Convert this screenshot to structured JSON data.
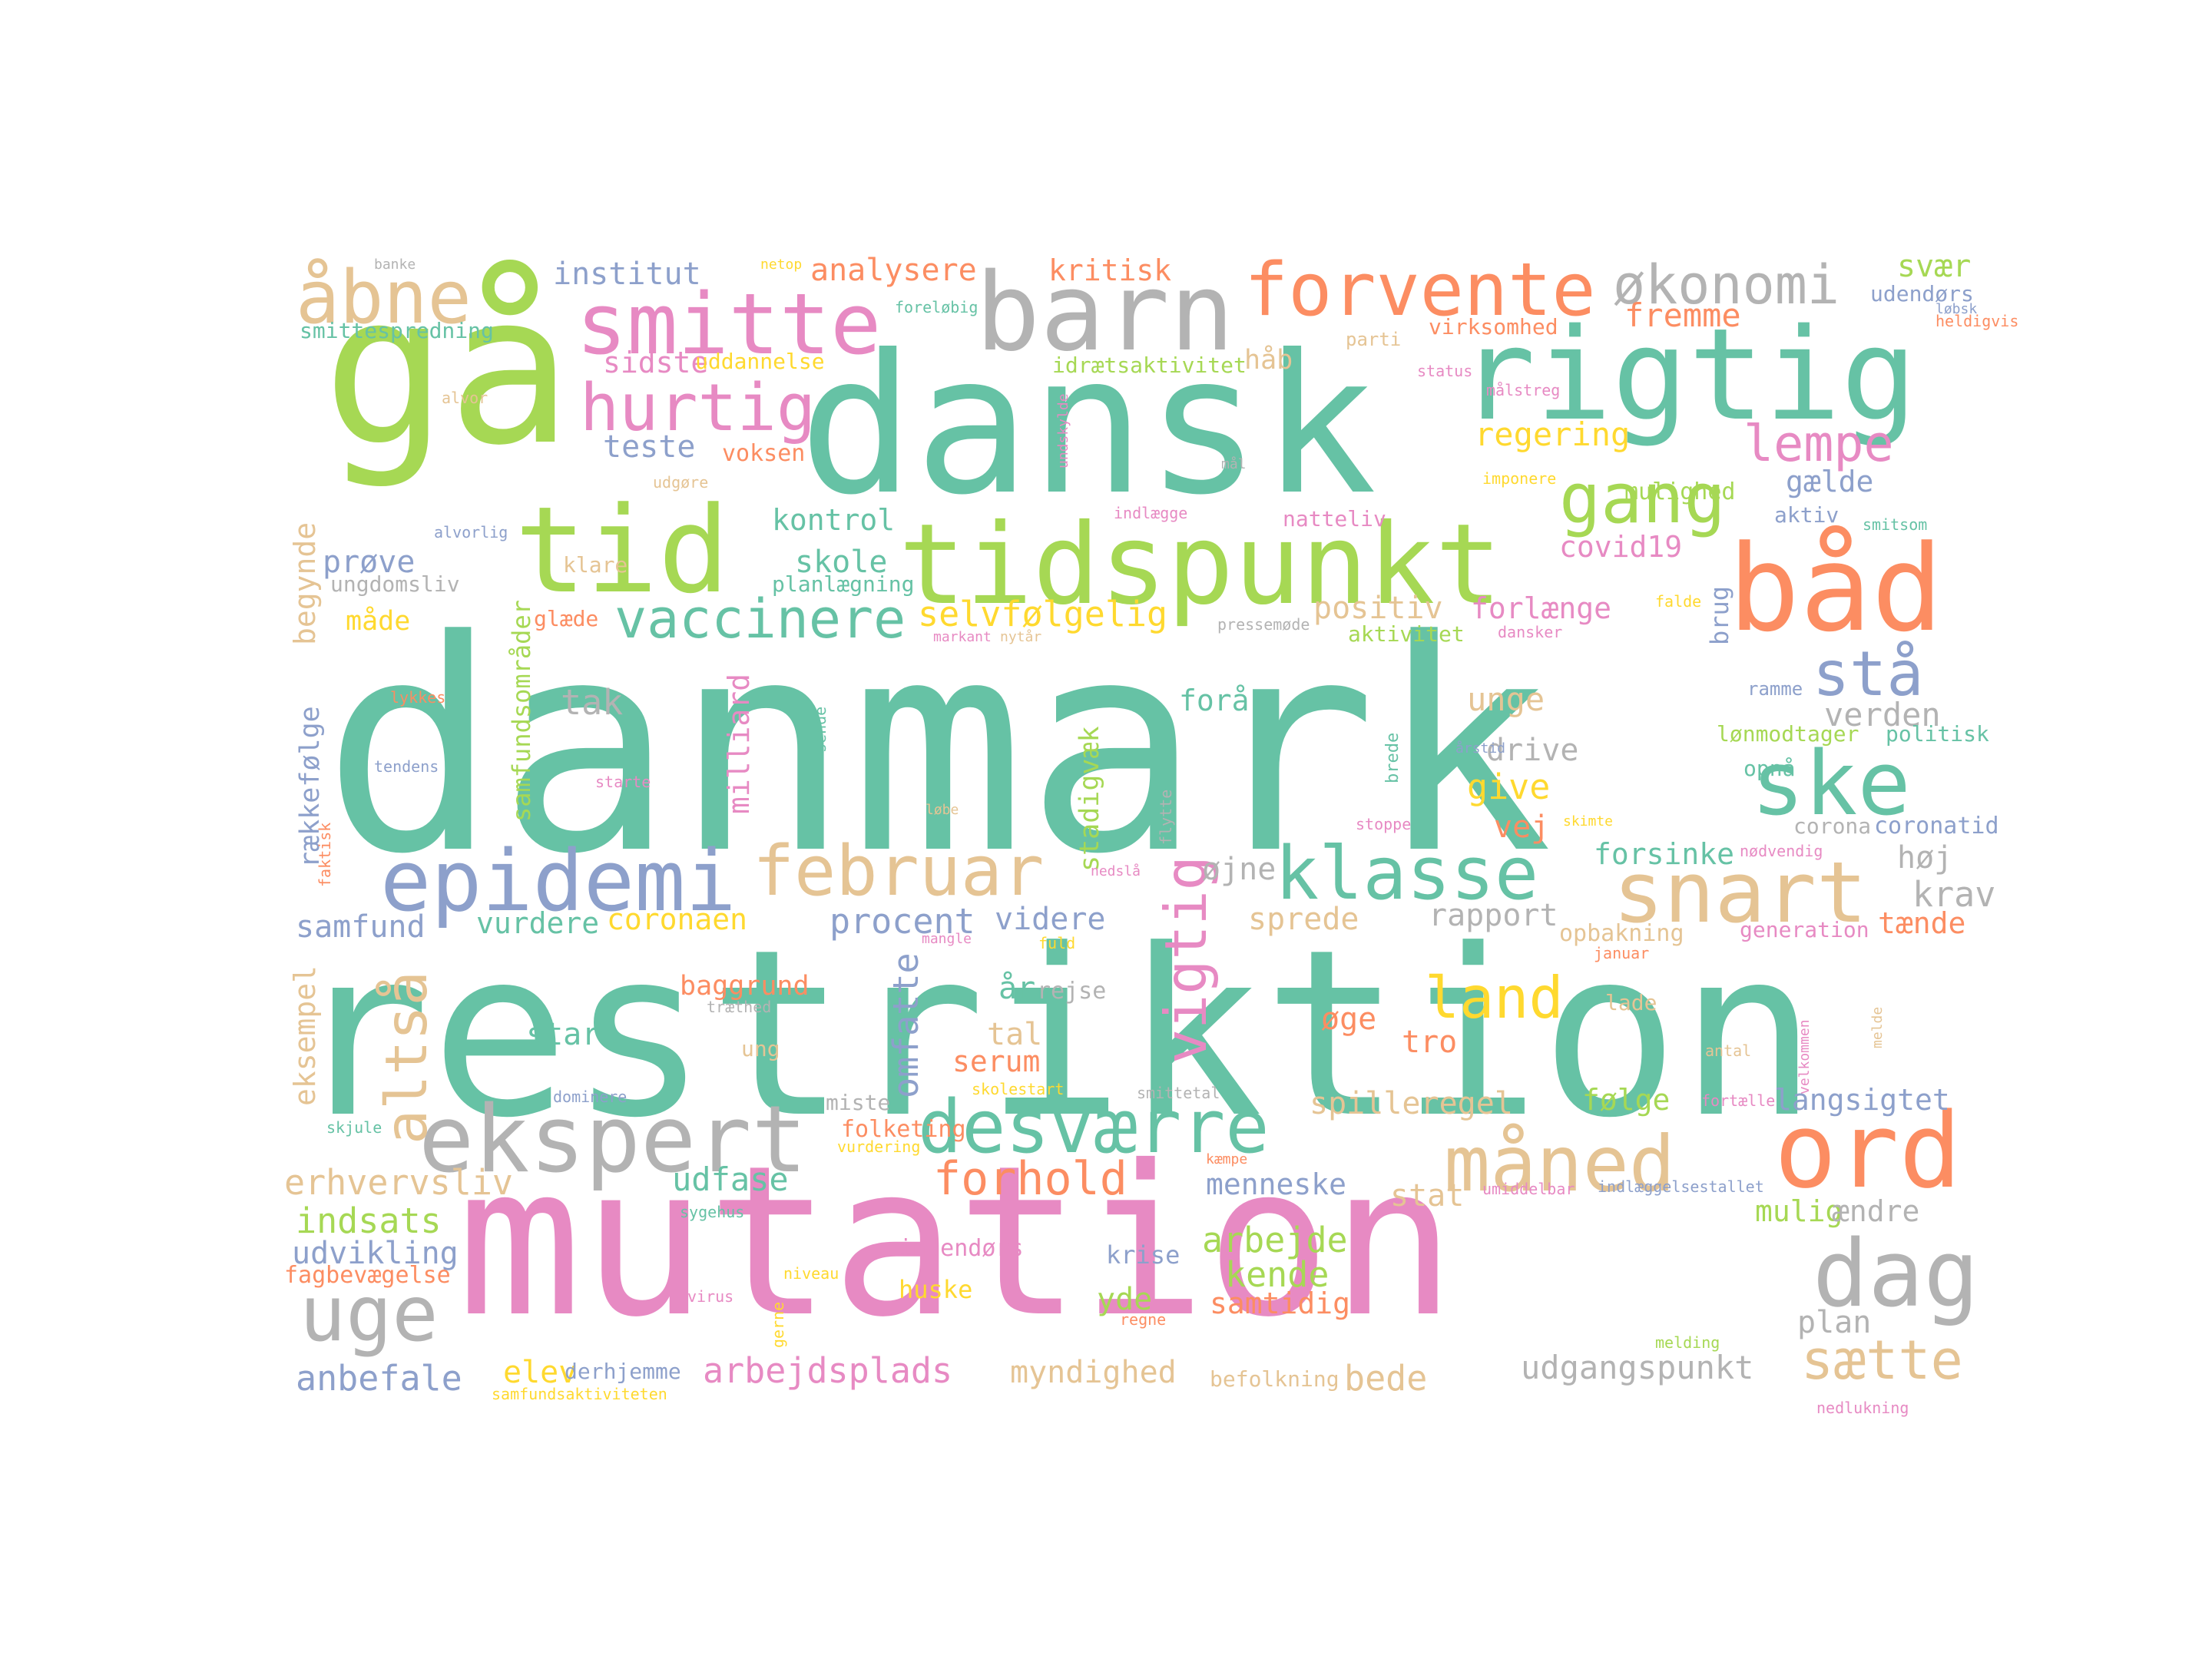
{
  "palette": {
    "teal": "#66c2a5",
    "orange": "#fc8d62",
    "blue": "#8da0cb",
    "pink": "#e78ac3",
    "green": "#a6d854",
    "yellow": "#ffd92f",
    "tan": "#e5c494",
    "gray": "#b3b3b3"
  },
  "words": [
    {
      "text": "danmark",
      "color": "teal"
    },
    {
      "text": "restriktion",
      "color": "teal"
    },
    {
      "text": "mutation",
      "color": "pink"
    },
    {
      "text": "dansk",
      "color": "teal"
    },
    {
      "text": "gå",
      "color": "green"
    },
    {
      "text": "rigtig",
      "color": "teal"
    },
    {
      "text": "tidspunkt",
      "color": "green"
    },
    {
      "text": "båd",
      "color": "orange"
    },
    {
      "text": "barn",
      "color": "gray"
    },
    {
      "text": "tid",
      "color": "green"
    },
    {
      "text": "ekspert",
      "color": "gray"
    },
    {
      "text": "ord",
      "color": "orange"
    },
    {
      "text": "smitte",
      "color": "pink"
    },
    {
      "text": "forvente",
      "color": "orange"
    },
    {
      "text": "ske",
      "color": "teal"
    },
    {
      "text": "epidemi",
      "color": "blue"
    },
    {
      "text": "februar",
      "color": "tan"
    },
    {
      "text": "klasse",
      "color": "teal"
    },
    {
      "text": "snart",
      "color": "tan"
    },
    {
      "text": "måned",
      "color": "tan"
    },
    {
      "text": "dag",
      "color": "gray"
    },
    {
      "text": "uge",
      "color": "gray"
    },
    {
      "text": "desværre",
      "color": "teal"
    },
    {
      "text": "åbne",
      "color": "tan"
    },
    {
      "text": "hurtig",
      "color": "pink"
    },
    {
      "text": "gang",
      "color": "green"
    },
    {
      "text": "økonomi",
      "color": "gray"
    },
    {
      "text": "vaccinere",
      "color": "teal"
    },
    {
      "text": "stå",
      "color": "blue"
    },
    {
      "text": "vigtig",
      "color": "pink"
    },
    {
      "text": "altså",
      "color": "tan"
    },
    {
      "text": "forhold",
      "color": "orange"
    },
    {
      "text": "land",
      "color": "yellow"
    },
    {
      "text": "lempe",
      "color": "pink"
    },
    {
      "text": "selvfølgelig",
      "color": "yellow"
    },
    {
      "text": "procent",
      "color": "blue"
    },
    {
      "text": "omfatte",
      "color": "blue"
    },
    {
      "text": "institut",
      "color": "blue"
    },
    {
      "text": "analysere",
      "color": "orange"
    },
    {
      "text": "kritisk",
      "color": "orange"
    },
    {
      "text": "svær",
      "color": "green"
    },
    {
      "text": "udendørs",
      "color": "blue"
    },
    {
      "text": "løbsk",
      "color": "blue"
    },
    {
      "text": "heldigvis",
      "color": "orange"
    },
    {
      "text": "banke",
      "color": "gray"
    },
    {
      "text": "netop",
      "color": "yellow"
    },
    {
      "text": "foreløbig",
      "color": "teal"
    },
    {
      "text": "fremme",
      "color": "orange"
    },
    {
      "text": "smittespredning",
      "color": "teal"
    },
    {
      "text": "parti",
      "color": "tan"
    },
    {
      "text": "virksomhed",
      "color": "orange"
    },
    {
      "text": "sidste",
      "color": "pink"
    },
    {
      "text": "uddannelse",
      "color": "yellow"
    },
    {
      "text": "idrætsaktivitet",
      "color": "green"
    },
    {
      "text": "håb",
      "color": "tan"
    },
    {
      "text": "status",
      "color": "pink"
    },
    {
      "text": "alvor",
      "color": "tan"
    },
    {
      "text": "målstreg",
      "color": "pink"
    },
    {
      "text": "undskylde",
      "color": "pink"
    },
    {
      "text": "regering",
      "color": "yellow"
    },
    {
      "text": "teste",
      "color": "blue"
    },
    {
      "text": "voksen",
      "color": "orange"
    },
    {
      "text": "udgøre",
      "color": "tan"
    },
    {
      "text": "mål",
      "color": "gray"
    },
    {
      "text": "imponere",
      "color": "yellow"
    },
    {
      "text": "gælde",
      "color": "blue"
    },
    {
      "text": "mulighed",
      "color": "green"
    },
    {
      "text": "kontrol",
      "color": "teal"
    },
    {
      "text": "indlægge",
      "color": "pink"
    },
    {
      "text": "natteliv",
      "color": "pink"
    },
    {
      "text": "aktiv",
      "color": "blue"
    },
    {
      "text": "smitsom",
      "color": "teal"
    },
    {
      "text": "alvorlig",
      "color": "blue"
    },
    {
      "text": "covid19",
      "color": "pink"
    },
    {
      "text": "prøve",
      "color": "blue"
    },
    {
      "text": "skole",
      "color": "teal"
    },
    {
      "text": "klare",
      "color": "tan"
    },
    {
      "text": "planlægning",
      "color": "teal"
    },
    {
      "text": "ungdomsliv",
      "color": "gray"
    },
    {
      "text": "samfundsområder",
      "color": "green"
    },
    {
      "text": "begynde",
      "color": "tan"
    },
    {
      "text": "måde",
      "color": "yellow"
    },
    {
      "text": "glæde",
      "color": "orange"
    },
    {
      "text": "markant",
      "color": "pink"
    },
    {
      "text": "nytår",
      "color": "tan"
    },
    {
      "text": "pressemøde",
      "color": "gray"
    },
    {
      "text": "positiv",
      "color": "tan"
    },
    {
      "text": "aktivitet",
      "color": "green"
    },
    {
      "text": "forlænge",
      "color": "pink"
    },
    {
      "text": "dansker",
      "color": "pink"
    },
    {
      "text": "falde",
      "color": "yellow"
    },
    {
      "text": "brug",
      "color": "blue"
    },
    {
      "text": "tak",
      "color": "gray"
    },
    {
      "text": "milliard",
      "color": "pink"
    },
    {
      "text": "sende",
      "color": "teal"
    },
    {
      "text": "stadigvæk",
      "color": "green"
    },
    {
      "text": "forår",
      "color": "teal"
    },
    {
      "text": "brede",
      "color": "teal"
    },
    {
      "text": "unge",
      "color": "tan"
    },
    {
      "text": "ramme",
      "color": "blue"
    },
    {
      "text": "verden",
      "color": "gray"
    },
    {
      "text": "rækkefølge",
      "color": "blue"
    },
    {
      "text": "lykkes",
      "color": "orange"
    },
    {
      "text": "tendens",
      "color": "blue"
    },
    {
      "text": "starte",
      "color": "pink"
    },
    {
      "text": "løbe",
      "color": "tan"
    },
    {
      "text": "flytte",
      "color": "gray"
    },
    {
      "text": "drive",
      "color": "gray"
    },
    {
      "text": "årstid",
      "color": "blue"
    },
    {
      "text": "lønmodtager",
      "color": "green"
    },
    {
      "text": "politisk",
      "color": "teal"
    },
    {
      "text": "give",
      "color": "yellow"
    },
    {
      "text": "opnå",
      "color": "teal"
    },
    {
      "text": "stoppe",
      "color": "pink"
    },
    {
      "text": "skimte",
      "color": "yellow"
    },
    {
      "text": "corona",
      "color": "gray"
    },
    {
      "text": "coronatid",
      "color": "blue"
    },
    {
      "text": "vej",
      "color": "orange"
    },
    {
      "text": "faktisk",
      "color": "orange"
    },
    {
      "text": "forsinke",
      "color": "teal"
    },
    {
      "text": "nødvendig",
      "color": "pink"
    },
    {
      "text": "øjne",
      "color": "gray"
    },
    {
      "text": "høj",
      "color": "gray"
    },
    {
      "text": "nedslå",
      "color": "pink"
    },
    {
      "text": "krav",
      "color": "gray"
    },
    {
      "text": "samfund",
      "color": "blue"
    },
    {
      "text": "vurdere",
      "color": "teal"
    },
    {
      "text": "coronaen",
      "color": "yellow"
    },
    {
      "text": "videre",
      "color": "blue"
    },
    {
      "text": "sprede",
      "color": "tan"
    },
    {
      "text": "rapport",
      "color": "gray"
    },
    {
      "text": "mangle",
      "color": "pink"
    },
    {
      "text": "fuld",
      "color": "yellow"
    },
    {
      "text": "opbakning",
      "color": "tan"
    },
    {
      "text": "januar",
      "color": "orange"
    },
    {
      "text": "generation",
      "color": "pink"
    },
    {
      "text": "tænde",
      "color": "orange"
    },
    {
      "text": "eksempel",
      "color": "tan"
    },
    {
      "text": "baggrund",
      "color": "orange"
    },
    {
      "text": "træthed",
      "color": "gray"
    },
    {
      "text": "år",
      "color": "teal"
    },
    {
      "text": "rejse",
      "color": "gray"
    },
    {
      "text": "lade",
      "color": "tan"
    },
    {
      "text": "start",
      "color": "teal"
    },
    {
      "text": "tal",
      "color": "tan"
    },
    {
      "text": "øge",
      "color": "orange"
    },
    {
      "text": "tro",
      "color": "orange"
    },
    {
      "text": "velkommen",
      "color": "pink"
    },
    {
      "text": "melde",
      "color": "tan"
    },
    {
      "text": "ung",
      "color": "tan"
    },
    {
      "text": "serum",
      "color": "orange"
    },
    {
      "text": "antal",
      "color": "tan"
    },
    {
      "text": "dominere",
      "color": "blue"
    },
    {
      "text": "skolestart",
      "color": "yellow"
    },
    {
      "text": "smittetal",
      "color": "gray"
    },
    {
      "text": "spilleregel",
      "color": "tan"
    },
    {
      "text": "følge",
      "color": "green"
    },
    {
      "text": "fortælle",
      "color": "pink"
    },
    {
      "text": "langsigtet",
      "color": "blue"
    },
    {
      "text": "skjule",
      "color": "teal"
    },
    {
      "text": "miste",
      "color": "gray"
    },
    {
      "text": "folketing",
      "color": "orange"
    },
    {
      "text": "vurdering",
      "color": "yellow"
    },
    {
      "text": "erhvervsliv",
      "color": "tan"
    },
    {
      "text": "udfase",
      "color": "teal"
    },
    {
      "text": "kæmpe",
      "color": "orange"
    },
    {
      "text": "menneske",
      "color": "blue"
    },
    {
      "text": "umiddelbar",
      "color": "pink"
    },
    {
      "text": "indlæggelsestallet",
      "color": "blue"
    },
    {
      "text": "stat",
      "color": "tan"
    },
    {
      "text": "indsats",
      "color": "green"
    },
    {
      "text": "sygehus",
      "color": "teal"
    },
    {
      "text": "mulig",
      "color": "green"
    },
    {
      "text": "ændre",
      "color": "gray"
    },
    {
      "text": "udvikling",
      "color": "blue"
    },
    {
      "text": "fagbevægelse",
      "color": "orange"
    },
    {
      "text": "indendørs",
      "color": "pink"
    },
    {
      "text": "niveau",
      "color": "yellow"
    },
    {
      "text": "arbejde",
      "color": "green"
    },
    {
      "text": "krise",
      "color": "blue"
    },
    {
      "text": "kende",
      "color": "green"
    },
    {
      "text": "huske",
      "color": "yellow"
    },
    {
      "text": "yde",
      "color": "green"
    },
    {
      "text": "virus",
      "color": "pink"
    },
    {
      "text": "samtidig",
      "color": "orange"
    },
    {
      "text": "gerne",
      "color": "yellow"
    },
    {
      "text": "regne",
      "color": "orange"
    },
    {
      "text": "plan",
      "color": "gray"
    },
    {
      "text": "melding",
      "color": "green"
    },
    {
      "text": "anbefale",
      "color": "blue"
    },
    {
      "text": "elev",
      "color": "yellow"
    },
    {
      "text": "derhjemme",
      "color": "blue"
    },
    {
      "text": "arbejdsplads",
      "color": "pink"
    },
    {
      "text": "myndighed",
      "color": "tan"
    },
    {
      "text": "befolkning",
      "color": "tan"
    },
    {
      "text": "bede",
      "color": "tan"
    },
    {
      "text": "udgangspunkt",
      "color": "gray"
    },
    {
      "text": "sætte",
      "color": "tan"
    },
    {
      "text": "samfundsaktiviteten",
      "color": "yellow"
    },
    {
      "text": "nedlukning",
      "color": "pink"
    }
  ]
}
